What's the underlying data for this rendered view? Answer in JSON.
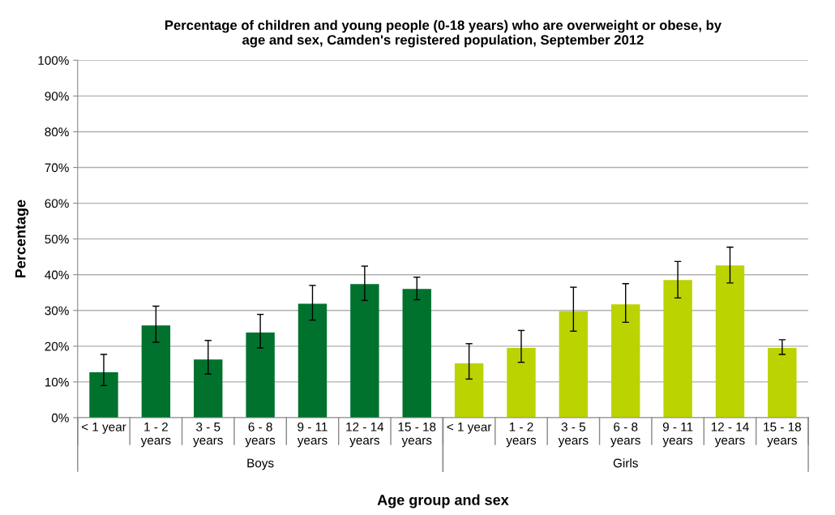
{
  "chart_data": {
    "type": "bar",
    "title": "Percentage of children and young people (0-18 years) who are overweight or obese, by\nage and sex, Camden's registered population, September 2012",
    "xlabel": "Age group and sex",
    "ylabel": "Percentage",
    "categories": [
      "< 1 year",
      "1 - 2\nyears",
      "3 - 5\nyears",
      "6 - 8\nyears",
      "9 - 11\nyears",
      "12 - 14\nyears",
      "15 - 18\nyears",
      "< 1 year",
      "1 - 2\nyears",
      "3 - 5\nyears",
      "6 - 8\nyears",
      "9 - 11\nyears",
      "12 - 14\nyears",
      "15 - 18\nyears"
    ],
    "values": [
      12.7,
      25.8,
      16.3,
      23.8,
      31.9,
      37.4,
      36.0,
      15.2,
      19.5,
      29.8,
      31.7,
      38.5,
      42.6,
      19.5
    ],
    "errors": [
      [
        9.0,
        17.7
      ],
      [
        21.1,
        31.2
      ],
      [
        12.2,
        21.6
      ],
      [
        19.5,
        28.9
      ],
      [
        27.3,
        37.0
      ],
      [
        32.8,
        42.4
      ],
      [
        33.0,
        39.3
      ],
      [
        10.8,
        20.7
      ],
      [
        15.5,
        24.4
      ],
      [
        24.2,
        36.5
      ],
      [
        26.7,
        37.5
      ],
      [
        33.5,
        43.7
      ],
      [
        37.7,
        47.7
      ],
      [
        17.7,
        21.8
      ]
    ],
    "colors": [
      "#00722e",
      "#00722e",
      "#00722e",
      "#00722e",
      "#00722e",
      "#00722e",
      "#00722e",
      "#bbd300",
      "#bbd300",
      "#bbd300",
      "#bbd300",
      "#bbd300",
      "#bbd300",
      "#bbd300"
    ],
    "annotations": [
      "Boys",
      "Girls"
    ],
    "ylim": [
      0,
      100
    ],
    "yticks": [
      {
        "value": 0,
        "label": "0%"
      },
      {
        "value": 10,
        "label": "10%"
      },
      {
        "value": 20,
        "label": "20%"
      },
      {
        "value": 30,
        "label": "30%"
      },
      {
        "value": 40,
        "label": "40%"
      },
      {
        "value": 50,
        "label": "50%"
      },
      {
        "value": 60,
        "label": "60%"
      },
      {
        "value": 70,
        "label": "70%"
      },
      {
        "value": 80,
        "label": "80%"
      },
      {
        "value": 90,
        "label": "90%"
      },
      {
        "value": 100,
        "label": "100%"
      }
    ],
    "grid": "y",
    "legend": false
  }
}
